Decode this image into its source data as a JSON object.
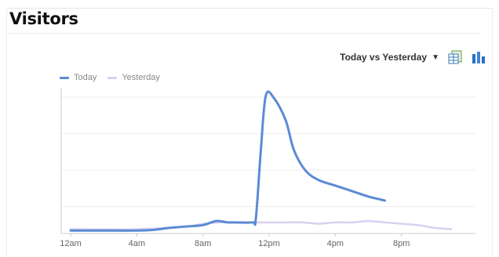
{
  "widget": {
    "title": "Visitors",
    "compare_label": "Today vs Yesterday",
    "compare_caret": "▼",
    "icons": {
      "export": "spreadsheet-export-icon",
      "chart_type": "bar-chart-icon"
    }
  },
  "colors": {
    "today": "#5b8bd4",
    "yesterday": "#d9d0f2",
    "grid": "#eeeeee",
    "axis": "#cccccc"
  },
  "chart_data": {
    "type": "line",
    "title": "",
    "xlabel": "",
    "ylabel": "",
    "x_ticks": [
      "12am",
      "4am",
      "8am",
      "12pm",
      "4pm",
      "8pm"
    ],
    "x_range_hours": [
      0,
      24
    ],
    "ylim": [
      0,
      100
    ],
    "grid": true,
    "legend": "top-left",
    "series": [
      {
        "name": "Today",
        "color": "#5b8bd4",
        "points": [
          [
            0,
            1
          ],
          [
            2,
            1
          ],
          [
            4,
            1
          ],
          [
            5,
            1.5
          ],
          [
            6,
            3
          ],
          [
            7,
            4
          ],
          [
            8,
            5
          ],
          [
            8.8,
            8
          ],
          [
            9.5,
            7
          ],
          [
            10,
            7
          ],
          [
            11,
            7
          ],
          [
            11.2,
            10
          ],
          [
            11.5,
            60
          ],
          [
            11.8,
            100
          ],
          [
            12.3,
            98
          ],
          [
            13,
            82
          ],
          [
            13.5,
            60
          ],
          [
            14.2,
            45
          ],
          [
            15,
            38
          ],
          [
            16,
            34
          ],
          [
            17,
            30
          ],
          [
            18,
            26
          ],
          [
            19,
            23
          ]
        ]
      },
      {
        "name": "Yesterday",
        "color": "#d9d0f2",
        "points": [
          [
            0,
            2
          ],
          [
            4,
            2
          ],
          [
            7,
            4
          ],
          [
            8,
            6
          ],
          [
            9,
            7
          ],
          [
            10,
            7
          ],
          [
            11,
            7
          ],
          [
            12,
            7
          ],
          [
            13,
            7
          ],
          [
            14,
            7
          ],
          [
            15,
            6
          ],
          [
            16,
            7
          ],
          [
            17,
            7
          ],
          [
            18,
            8
          ],
          [
            19,
            7
          ],
          [
            20,
            6
          ],
          [
            21,
            5
          ],
          [
            22,
            3
          ],
          [
            23,
            2
          ]
        ]
      }
    ]
  }
}
